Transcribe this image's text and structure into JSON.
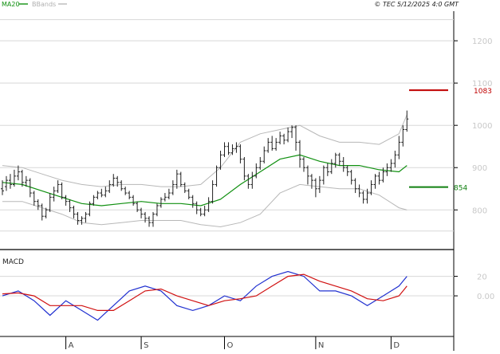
{
  "legend": {
    "ma_label": "MA20",
    "bb_label": "BBands"
  },
  "copyright": "© TEC 5/12/2025 4:0 GMT",
  "colors": {
    "price": "#202020",
    "ma": "#109010",
    "bands": "#b8b8b8",
    "resistance": "#c00000",
    "support": "#108010",
    "macd": "#2030d0",
    "signal": "#d01010",
    "grid": "#d8d8d8"
  },
  "chart_data": [
    {
      "type": "line",
      "panel": "price",
      "ylim": [
        710,
        1270
      ],
      "y_ticks": [
        {
          "value": 1200,
          "label": "1200"
        },
        {
          "value": 1100,
          "label": "1100"
        },
        {
          "value": 1000,
          "label": "1000"
        },
        {
          "value": 900,
          "label": "900"
        },
        {
          "value": 800,
          "label": "800"
        }
      ],
      "x_ticks": [
        {
          "x": 16,
          "label": "A"
        },
        {
          "x": 35,
          "label": "S"
        },
        {
          "x": 56,
          "label": "O"
        },
        {
          "x": 79,
          "label": "N"
        },
        {
          "x": 98,
          "label": "D"
        }
      ],
      "xlim": [
        0,
        113
      ],
      "ohlc": [
        [
          0,
          850,
          845,
          870,
          835
        ],
        [
          1,
          855,
          870,
          880,
          845
        ],
        [
          2,
          870,
          860,
          885,
          850
        ],
        [
          3,
          860,
          880,
          895,
          855
        ],
        [
          4,
          880,
          890,
          905,
          870
        ],
        [
          5,
          890,
          865,
          895,
          855
        ],
        [
          6,
          865,
          870,
          880,
          855
        ],
        [
          7,
          870,
          840,
          875,
          830
        ],
        [
          8,
          840,
          820,
          845,
          810
        ],
        [
          9,
          820,
          810,
          825,
          800
        ],
        [
          10,
          810,
          785,
          815,
          775
        ],
        [
          11,
          785,
          800,
          805,
          780
        ],
        [
          12,
          800,
          830,
          840,
          795
        ],
        [
          13,
          830,
          845,
          855,
          820
        ],
        [
          14,
          845,
          860,
          870,
          840
        ],
        [
          15,
          860,
          830,
          865,
          825
        ],
        [
          16,
          830,
          820,
          835,
          810
        ],
        [
          17,
          820,
          805,
          825,
          795
        ],
        [
          18,
          805,
          790,
          810,
          780
        ],
        [
          19,
          790,
          775,
          795,
          765
        ],
        [
          20,
          775,
          780,
          785,
          765
        ],
        [
          21,
          780,
          790,
          795,
          770
        ],
        [
          22,
          790,
          815,
          820,
          785
        ],
        [
          23,
          815,
          830,
          835,
          810
        ],
        [
          24,
          830,
          840,
          845,
          825
        ],
        [
          25,
          840,
          835,
          850,
          830
        ],
        [
          26,
          835,
          845,
          855,
          830
        ],
        [
          27,
          845,
          860,
          870,
          840
        ],
        [
          28,
          860,
          875,
          885,
          855
        ],
        [
          29,
          875,
          865,
          880,
          855
        ],
        [
          30,
          865,
          850,
          870,
          845
        ],
        [
          31,
          850,
          840,
          855,
          835
        ],
        [
          32,
          840,
          830,
          845,
          825
        ],
        [
          33,
          830,
          815,
          835,
          810
        ],
        [
          34,
          815,
          800,
          820,
          795
        ],
        [
          35,
          800,
          790,
          805,
          780
        ],
        [
          36,
          790,
          780,
          795,
          770
        ],
        [
          37,
          780,
          770,
          785,
          760
        ],
        [
          38,
          770,
          790,
          795,
          760
        ],
        [
          39,
          790,
          810,
          815,
          785
        ],
        [
          40,
          810,
          825,
          830,
          805
        ],
        [
          41,
          825,
          830,
          840,
          820
        ],
        [
          42,
          830,
          840,
          850,
          825
        ],
        [
          43,
          840,
          860,
          870,
          835
        ],
        [
          44,
          860,
          885,
          895,
          850
        ],
        [
          45,
          885,
          860,
          890,
          855
        ],
        [
          46,
          860,
          845,
          865,
          840
        ],
        [
          47,
          845,
          830,
          850,
          825
        ],
        [
          48,
          830,
          815,
          835,
          805
        ],
        [
          49,
          815,
          800,
          820,
          790
        ],
        [
          50,
          800,
          790,
          805,
          785
        ],
        [
          51,
          790,
          800,
          810,
          785
        ],
        [
          52,
          800,
          820,
          830,
          795
        ],
        [
          53,
          820,
          860,
          870,
          815
        ],
        [
          54,
          860,
          900,
          905,
          855
        ],
        [
          55,
          900,
          930,
          940,
          895
        ],
        [
          56,
          930,
          950,
          960,
          925
        ],
        [
          57,
          950,
          935,
          960,
          930
        ],
        [
          58,
          935,
          945,
          955,
          930
        ],
        [
          59,
          945,
          950,
          960,
          935
        ],
        [
          60,
          950,
          920,
          955,
          910
        ],
        [
          61,
          920,
          880,
          925,
          870
        ],
        [
          62,
          880,
          860,
          885,
          850
        ],
        [
          63,
          860,
          880,
          890,
          850
        ],
        [
          64,
          880,
          900,
          910,
          875
        ],
        [
          65,
          900,
          915,
          925,
          895
        ],
        [
          66,
          915,
          940,
          950,
          910
        ],
        [
          67,
          940,
          960,
          970,
          935
        ],
        [
          68,
          960,
          945,
          975,
          940
        ],
        [
          69,
          945,
          960,
          970,
          940
        ],
        [
          70,
          960,
          975,
          985,
          955
        ],
        [
          71,
          975,
          965,
          980,
          955
        ],
        [
          72,
          965,
          985,
          995,
          960
        ],
        [
          73,
          985,
          995,
          1000,
          970
        ],
        [
          74,
          995,
          960,
          1000,
          940
        ],
        [
          75,
          960,
          920,
          965,
          900
        ],
        [
          76,
          920,
          900,
          925,
          890
        ],
        [
          77,
          900,
          880,
          905,
          860
        ],
        [
          78,
          880,
          870,
          885,
          850
        ],
        [
          79,
          870,
          850,
          875,
          830
        ],
        [
          80,
          850,
          870,
          880,
          840
        ],
        [
          81,
          870,
          900,
          905,
          860
        ],
        [
          82,
          900,
          890,
          910,
          880
        ],
        [
          83,
          890,
          910,
          920,
          885
        ],
        [
          84,
          910,
          930,
          935,
          900
        ],
        [
          85,
          930,
          915,
          935,
          905
        ],
        [
          86,
          915,
          900,
          925,
          890
        ],
        [
          87,
          900,
          890,
          905,
          880
        ],
        [
          88,
          890,
          870,
          895,
          860
        ],
        [
          89,
          870,
          850,
          875,
          840
        ],
        [
          90,
          850,
          840,
          860,
          830
        ],
        [
          91,
          840,
          825,
          845,
          815
        ],
        [
          92,
          825,
          840,
          850,
          815
        ],
        [
          93,
          840,
          860,
          870,
          835
        ],
        [
          94,
          860,
          880,
          885,
          850
        ],
        [
          95,
          880,
          870,
          890,
          860
        ],
        [
          96,
          870,
          890,
          900,
          865
        ],
        [
          97,
          890,
          900,
          910,
          880
        ],
        [
          98,
          900,
          910,
          920,
          890
        ],
        [
          99,
          910,
          930,
          940,
          900
        ],
        [
          100,
          930,
          960,
          975,
          920
        ],
        [
          101,
          960,
          990,
          1000,
          950
        ],
        [
          102,
          990,
          1015,
          1035,
          985
        ]
      ],
      "ma20": [
        [
          0,
          865
        ],
        [
          5,
          860
        ],
        [
          10,
          845
        ],
        [
          15,
          830
        ],
        [
          20,
          815
        ],
        [
          25,
          810
        ],
        [
          30,
          815
        ],
        [
          35,
          820
        ],
        [
          40,
          815
        ],
        [
          45,
          815
        ],
        [
          50,
          810
        ],
        [
          55,
          825
        ],
        [
          60,
          860
        ],
        [
          65,
          890
        ],
        [
          70,
          920
        ],
        [
          75,
          930
        ],
        [
          80,
          915
        ],
        [
          85,
          905
        ],
        [
          90,
          905
        ],
        [
          95,
          895
        ],
        [
          100,
          890
        ],
        [
          102,
          905
        ]
      ],
      "band_upper": [
        [
          0,
          905
        ],
        [
          5,
          900
        ],
        [
          10,
          885
        ],
        [
          15,
          870
        ],
        [
          20,
          860
        ],
        [
          25,
          855
        ],
        [
          30,
          860
        ],
        [
          35,
          860
        ],
        [
          40,
          855
        ],
        [
          45,
          855
        ],
        [
          50,
          860
        ],
        [
          55,
          900
        ],
        [
          60,
          960
        ],
        [
          65,
          980
        ],
        [
          70,
          990
        ],
        [
          75,
          1000
        ],
        [
          80,
          975
        ],
        [
          85,
          960
        ],
        [
          90,
          960
        ],
        [
          95,
          955
        ],
        [
          100,
          980
        ],
        [
          102,
          1025
        ]
      ],
      "band_lower": [
        [
          0,
          820
        ],
        [
          5,
          820
        ],
        [
          10,
          805
        ],
        [
          15,
          790
        ],
        [
          20,
          770
        ],
        [
          25,
          765
        ],
        [
          30,
          770
        ],
        [
          35,
          775
        ],
        [
          40,
          775
        ],
        [
          45,
          775
        ],
        [
          50,
          765
        ],
        [
          55,
          760
        ],
        [
          60,
          770
        ],
        [
          65,
          790
        ],
        [
          70,
          840
        ],
        [
          75,
          860
        ],
        [
          80,
          855
        ],
        [
          85,
          850
        ],
        [
          90,
          850
        ],
        [
          95,
          835
        ],
        [
          100,
          805
        ],
        [
          102,
          800
        ]
      ],
      "support": {
        "value": 854,
        "label": "854"
      },
      "resistance": {
        "value": 1083,
        "label": "1083"
      }
    },
    {
      "type": "line",
      "panel": "macd",
      "title": "MACD",
      "ylim": [
        -40,
        45
      ],
      "y_ticks": [
        {
          "value": 20,
          "label": "20"
        },
        {
          "value": 0,
          "label": "0.00"
        }
      ],
      "series": [
        {
          "values": [
            [
              0,
              0
            ],
            [
              4,
              5
            ],
            [
              8,
              -5
            ],
            [
              12,
              -20
            ],
            [
              16,
              -5
            ],
            [
              20,
              -15
            ],
            [
              24,
              -25
            ],
            [
              28,
              -10
            ],
            [
              32,
              5
            ],
            [
              36,
              10
            ],
            [
              40,
              5
            ],
            [
              44,
              -10
            ],
            [
              48,
              -15
            ],
            [
              52,
              -10
            ],
            [
              56,
              0
            ],
            [
              60,
              -5
            ],
            [
              64,
              10
            ],
            [
              68,
              20
            ],
            [
              72,
              25
            ],
            [
              76,
              20
            ],
            [
              80,
              5
            ],
            [
              84,
              5
            ],
            [
              88,
              0
            ],
            [
              92,
              -10
            ],
            [
              96,
              0
            ],
            [
              100,
              10
            ],
            [
              102,
              20
            ]
          ]
        },
        {
          "values": [
            [
              0,
              2
            ],
            [
              4,
              3
            ],
            [
              8,
              0
            ],
            [
              12,
              -10
            ],
            [
              16,
              -10
            ],
            [
              20,
              -10
            ],
            [
              24,
              -15
            ],
            [
              28,
              -15
            ],
            [
              32,
              -5
            ],
            [
              36,
              5
            ],
            [
              40,
              7
            ],
            [
              44,
              0
            ],
            [
              48,
              -5
            ],
            [
              52,
              -10
            ],
            [
              56,
              -5
            ],
            [
              60,
              -3
            ],
            [
              64,
              0
            ],
            [
              68,
              10
            ],
            [
              72,
              20
            ],
            [
              76,
              22
            ],
            [
              80,
              15
            ],
            [
              84,
              10
            ],
            [
              88,
              5
            ],
            [
              92,
              -3
            ],
            [
              96,
              -5
            ],
            [
              100,
              0
            ],
            [
              102,
              10
            ]
          ]
        }
      ]
    }
  ]
}
